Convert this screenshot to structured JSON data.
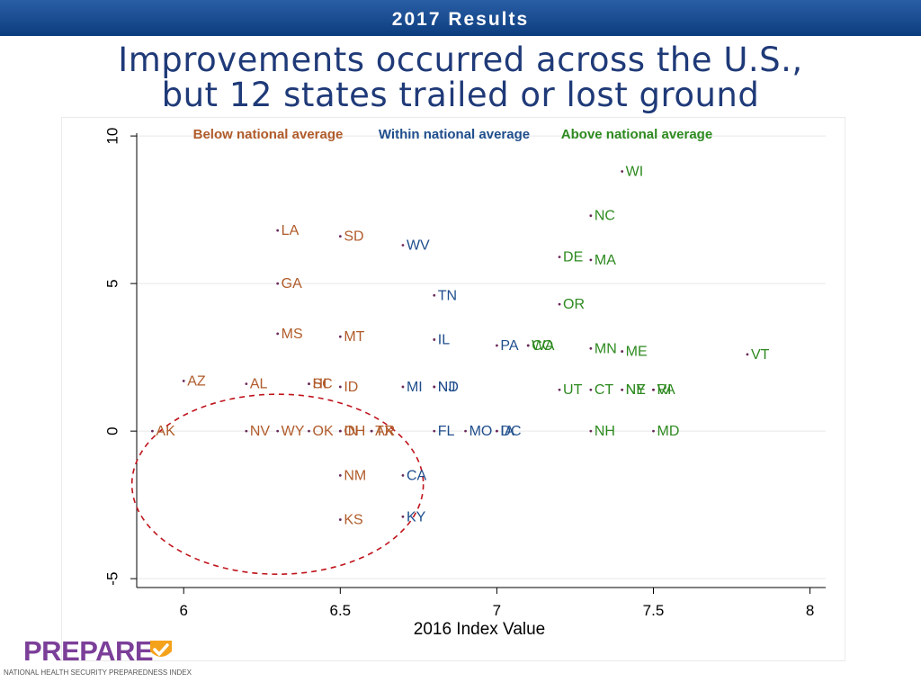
{
  "header": {
    "label": "2017 Results"
  },
  "title": {
    "line1": "Improvements occurred across the U.S.,",
    "line2": "but 12 states trailed or lost ground"
  },
  "logo": {
    "word": "PREPARE",
    "tagline": "NATIONAL HEALTH SECURITY PREPAREDNESS INDEX",
    "icon": "check-shield-icon"
  },
  "colors": {
    "header": "#0f4385",
    "title": "#1f3a78",
    "below": "#b05b2a",
    "within": "#1f4e8c",
    "above": "#2d8a1f",
    "circle": "#c0141c",
    "dot": "#6a2a5a",
    "logo_purple": "#7b3f99",
    "logo_orange": "#f5a21b"
  },
  "chart_data": {
    "type": "scatter",
    "xlabel": "2016 Index Value",
    "ylabel": "",
    "xlim": [
      5.85,
      8.05
    ],
    "ylim": [
      -5.3,
      10.4
    ],
    "xticks": [
      6,
      6.5,
      7,
      7.5,
      8
    ],
    "yticks": [
      -5,
      0,
      5,
      10
    ],
    "grid": true,
    "legend": [
      {
        "label": "Below national average",
        "group": "below"
      },
      {
        "label": "Within national average",
        "group": "within"
      },
      {
        "label": "Above national average",
        "group": "above"
      }
    ],
    "annotation": "dashed red circle around states with zero or negative change",
    "points": [
      {
        "label": "WI",
        "x": 7.4,
        "y": 8.8,
        "group": "above"
      },
      {
        "label": "NC",
        "x": 7.3,
        "y": 7.3,
        "group": "above"
      },
      {
        "label": "LA",
        "x": 6.3,
        "y": 6.8,
        "group": "below"
      },
      {
        "label": "SD",
        "x": 6.5,
        "y": 6.6,
        "group": "below"
      },
      {
        "label": "WV",
        "x": 6.7,
        "y": 6.3,
        "group": "within"
      },
      {
        "label": "DE",
        "x": 7.2,
        "y": 5.9,
        "group": "above"
      },
      {
        "label": "MA",
        "x": 7.3,
        "y": 5.8,
        "group": "above"
      },
      {
        "label": "GA",
        "x": 6.3,
        "y": 5.0,
        "group": "below"
      },
      {
        "label": "TN",
        "x": 6.8,
        "y": 4.6,
        "group": "within"
      },
      {
        "label": "OR",
        "x": 7.2,
        "y": 4.3,
        "group": "above"
      },
      {
        "label": "MS",
        "x": 6.3,
        "y": 3.3,
        "group": "below"
      },
      {
        "label": "MT",
        "x": 6.5,
        "y": 3.2,
        "group": "below"
      },
      {
        "label": "IL",
        "x": 6.8,
        "y": 3.1,
        "group": "within"
      },
      {
        "label": "PA",
        "x": 7.0,
        "y": 2.9,
        "group": "within"
      },
      {
        "label": "CO",
        "x": 7.1,
        "y": 2.9,
        "group": "above"
      },
      {
        "label": "WA",
        "x": 7.1,
        "y": 2.9,
        "group": "above"
      },
      {
        "label": "MN",
        "x": 7.3,
        "y": 2.8,
        "group": "above"
      },
      {
        "label": "ME",
        "x": 7.4,
        "y": 2.7,
        "group": "above"
      },
      {
        "label": "VT",
        "x": 7.8,
        "y": 2.6,
        "group": "above"
      },
      {
        "label": "AZ",
        "x": 6.0,
        "y": 1.7,
        "group": "below"
      },
      {
        "label": "AL",
        "x": 6.2,
        "y": 1.6,
        "group": "below"
      },
      {
        "label": "SC",
        "x": 6.4,
        "y": 1.6,
        "group": "below"
      },
      {
        "label": "HI",
        "x": 6.4,
        "y": 1.6,
        "group": "below"
      },
      {
        "label": "ID",
        "x": 6.5,
        "y": 1.5,
        "group": "below"
      },
      {
        "label": "MI",
        "x": 6.7,
        "y": 1.5,
        "group": "within"
      },
      {
        "label": "ND",
        "x": 6.8,
        "y": 1.5,
        "group": "within"
      },
      {
        "label": "NJ",
        "x": 6.8,
        "y": 1.5,
        "group": "within"
      },
      {
        "label": "UT",
        "x": 7.2,
        "y": 1.4,
        "group": "above"
      },
      {
        "label": "CT",
        "x": 7.3,
        "y": 1.4,
        "group": "above"
      },
      {
        "label": "NE",
        "x": 7.4,
        "y": 1.4,
        "group": "above"
      },
      {
        "label": "NY",
        "x": 7.4,
        "y": 1.4,
        "group": "above"
      },
      {
        "label": "RI",
        "x": 7.5,
        "y": 1.4,
        "group": "above"
      },
      {
        "label": "VA",
        "x": 7.5,
        "y": 1.4,
        "group": "above"
      },
      {
        "label": "AK",
        "x": 5.9,
        "y": 0,
        "group": "below"
      },
      {
        "label": "NV",
        "x": 6.2,
        "y": 0,
        "group": "below"
      },
      {
        "label": "WY",
        "x": 6.3,
        "y": 0,
        "group": "below"
      },
      {
        "label": "OK",
        "x": 6.4,
        "y": 0,
        "group": "below"
      },
      {
        "label": "IN",
        "x": 6.5,
        "y": 0,
        "group": "below"
      },
      {
        "label": "OH",
        "x": 6.5,
        "y": 0,
        "group": "below"
      },
      {
        "label": "AR",
        "x": 6.6,
        "y": 0,
        "group": "below"
      },
      {
        "label": "TX",
        "x": 6.6,
        "y": 0,
        "group": "below"
      },
      {
        "label": "FL",
        "x": 6.8,
        "y": 0,
        "group": "within"
      },
      {
        "label": "MO",
        "x": 6.9,
        "y": 0,
        "group": "within"
      },
      {
        "label": "IA",
        "x": 7.0,
        "y": 0,
        "group": "within"
      },
      {
        "label": "DC",
        "x": 7.0,
        "y": 0,
        "group": "within"
      },
      {
        "label": "NH",
        "x": 7.3,
        "y": 0,
        "group": "above"
      },
      {
        "label": "MD",
        "x": 7.5,
        "y": 0,
        "group": "above"
      },
      {
        "label": "CA",
        "x": 6.7,
        "y": -1.5,
        "group": "within"
      },
      {
        "label": "NM",
        "x": 6.5,
        "y": -1.5,
        "group": "below"
      },
      {
        "label": "KY",
        "x": 6.7,
        "y": -2.9,
        "group": "within"
      },
      {
        "label": "KS",
        "x": 6.5,
        "y": -3.0,
        "group": "below"
      }
    ]
  }
}
